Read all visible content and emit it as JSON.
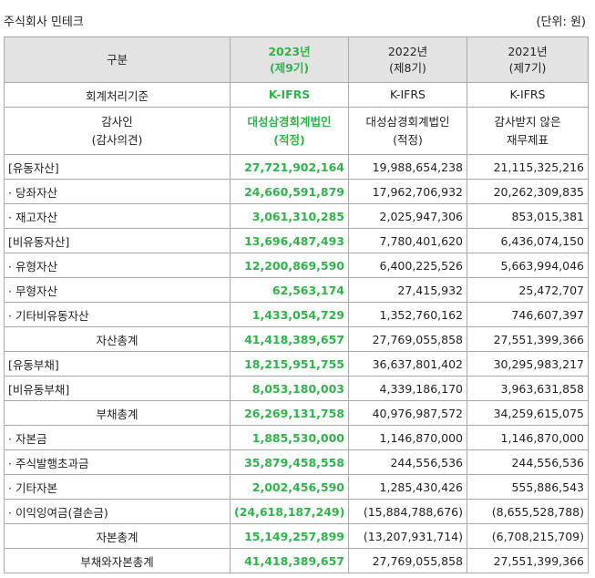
{
  "company": "주식회사 민테크",
  "unit": "(단위: 원)",
  "header": {
    "category": "구분",
    "col1_year": "2023년",
    "col1_term": "(제9기)",
    "col2_year": "2022년",
    "col2_term": "(제8기)",
    "col3_year": "2021년",
    "col3_term": "(제7기)"
  },
  "standard_row": {
    "label": "회계처리기준",
    "v1": "K-IFRS",
    "v2": "K-IFRS",
    "v3": "K-IFRS"
  },
  "auditor_row": {
    "label_l1": "감사인",
    "label_l2": "(감사의견)",
    "v1_l1": "대성삼경회계법인",
    "v1_l2": "(적정)",
    "v2_l1": "대성삼경회계법인",
    "v2_l2": "(적정)",
    "v3_l1": "감사받지 않은",
    "v3_l2": "재무제표"
  },
  "rows": [
    {
      "label": "[유동자산]",
      "v1": "27,721,902,164",
      "v2": "19,988,654,238",
      "v3": "21,115,325,216",
      "center": false
    },
    {
      "label": "· 당좌자산",
      "v1": "24,660,591,879",
      "v2": "17,962,706,932",
      "v3": "20,262,309,835",
      "center": false
    },
    {
      "label": "· 재고자산",
      "v1": "3,061,310,285",
      "v2": "2,025,947,306",
      "v3": "853,015,381",
      "center": false
    },
    {
      "label": "[비유동자산]",
      "v1": "13,696,487,493",
      "v2": "7,780,401,620",
      "v3": "6,436,074,150",
      "center": false
    },
    {
      "label": "· 유형자산",
      "v1": "12,200,869,590",
      "v2": "6,400,225,526",
      "v3": "5,663,994,046",
      "center": false
    },
    {
      "label": "· 무형자산",
      "v1": "62,563,174",
      "v2": "27,415,932",
      "v3": "25,472,707",
      "center": false
    },
    {
      "label": "· 기타비유동자산",
      "v1": "1,433,054,729",
      "v2": "1,352,760,162",
      "v3": "746,607,397",
      "center": false
    },
    {
      "label": "자산총계",
      "v1": "41,418,389,657",
      "v2": "27,769,055,858",
      "v3": "27,551,399,366",
      "center": true
    },
    {
      "label": "[유동부채]",
      "v1": "18,215,951,755",
      "v2": "36,637,801,402",
      "v3": "30,295,983,217",
      "center": false
    },
    {
      "label": "[비유동부채]",
      "v1": "8,053,180,003",
      "v2": "4,339,186,170",
      "v3": "3,963,631,858",
      "center": false
    },
    {
      "label": "부채총계",
      "v1": "26,269,131,758",
      "v2": "40,976,987,572",
      "v3": "34,259,615,075",
      "center": true
    },
    {
      "label": "· 자본금",
      "v1": "1,885,530,000",
      "v2": "1,146,870,000",
      "v3": "1,146,870,000",
      "center": false
    },
    {
      "label": "· 주식발행초과금",
      "v1": "35,879,458,558",
      "v2": "244,556,536",
      "v3": "244,556,536",
      "center": false
    },
    {
      "label": "· 기타자본",
      "v1": "2,002,456,590",
      "v2": "1,285,430,426",
      "v3": "555,886,543",
      "center": false
    },
    {
      "label": "· 이익잉여금(결손금)",
      "v1": "(24,618,187,249)",
      "v2": "(15,884,788,676)",
      "v3": "(8,655,528,788)",
      "center": false
    },
    {
      "label": "자본총계",
      "v1": "15,149,257,899",
      "v2": "(13,207,931,714)",
      "v3": "(6,708,215,709)",
      "center": true
    },
    {
      "label": "부채와자본총계",
      "v1": "41,418,389,657",
      "v2": "27,769,055,858",
      "v3": "27,551,399,366",
      "center": true
    }
  ]
}
